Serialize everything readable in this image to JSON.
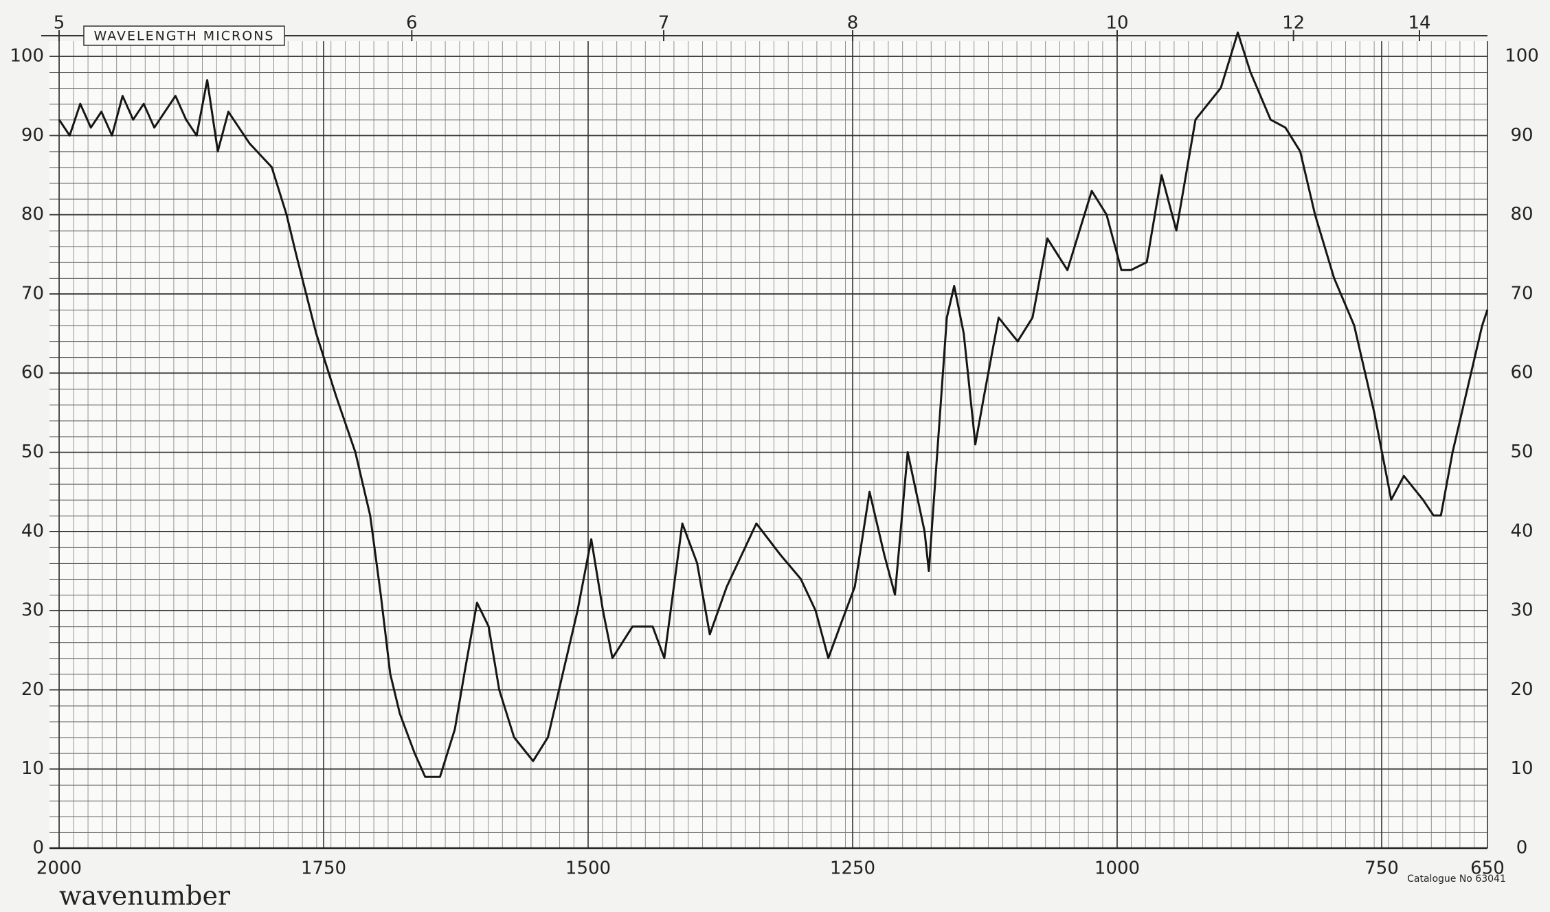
{
  "chart_data": {
    "type": "line",
    "xlabel": "wavenumber",
    "x2label": "WAVELENGTH MICRONS",
    "annotations": [
      "Catalogue No 63041"
    ],
    "x": [
      2000,
      1990,
      1980,
      1970,
      1960,
      1950,
      1940,
      1930,
      1920,
      1910,
      1900,
      1890,
      1880,
      1870,
      1860,
      1850,
      1840,
      1830,
      1820,
      1813,
      1799,
      1785,
      1776,
      1757,
      1738,
      1720,
      1706,
      1696,
      1687,
      1678,
      1664,
      1654,
      1640,
      1626,
      1617,
      1605,
      1594,
      1584,
      1570,
      1552,
      1538,
      1524,
      1510,
      1497,
      1486,
      1477,
      1458,
      1439,
      1428,
      1411,
      1397,
      1385,
      1369,
      1341,
      1318,
      1299,
      1285,
      1273,
      1262,
      1248,
      1234,
      1220,
      1210,
      1198,
      1182,
      1178,
      1170,
      1161,
      1154,
      1145,
      1134,
      1126,
      1112,
      1094,
      1080,
      1066,
      1047,
      1024,
      1010,
      996,
      987,
      972,
      958,
      944,
      926,
      902,
      886,
      874,
      855,
      841,
      827,
      813,
      795,
      776,
      757,
      741,
      729,
      711,
      701,
      694,
      683,
      669,
      655,
      650
    ],
    "values": [
      92,
      90,
      94,
      91,
      93,
      90,
      95,
      92,
      94,
      91,
      93,
      95,
      92,
      90,
      97,
      88,
      93,
      91,
      89,
      88,
      86,
      80,
      75,
      65,
      57,
      50,
      42,
      32,
      22,
      17,
      12,
      9,
      9,
      15,
      22,
      31,
      28,
      20,
      14,
      11,
      14,
      22,
      30,
      39,
      30,
      24,
      28,
      28,
      24,
      41,
      36,
      27,
      33,
      41,
      37,
      34,
      30,
      24,
      28,
      33,
      45,
      37,
      32,
      50,
      40,
      35,
      50,
      67,
      71,
      65,
      51,
      57,
      67,
      64,
      67,
      77,
      73,
      83,
      80,
      73,
      73,
      74,
      85,
      78,
      92,
      96,
      103,
      98,
      92,
      91,
      88,
      80,
      72,
      66,
      55,
      44,
      47,
      44,
      42,
      42,
      50,
      58,
      66,
      68
    ],
    "color": "#161616",
    "xlim": [
      2000,
      650
    ],
    "xticks": [
      2000,
      1750,
      1500,
      1250,
      1000,
      750,
      650
    ],
    "x2ticks": [
      5,
      6,
      7,
      8,
      10,
      12,
      14
    ],
    "ylim": [
      0,
      100
    ],
    "yticks": [
      0,
      10,
      20,
      30,
      40,
      50,
      60,
      70,
      80,
      90,
      100
    ],
    "y2lim": [
      0,
      100
    ],
    "y2ticks": [
      0,
      10,
      20,
      30,
      40,
      50,
      60,
      70,
      80,
      90,
      100
    ],
    "grid": true
  }
}
